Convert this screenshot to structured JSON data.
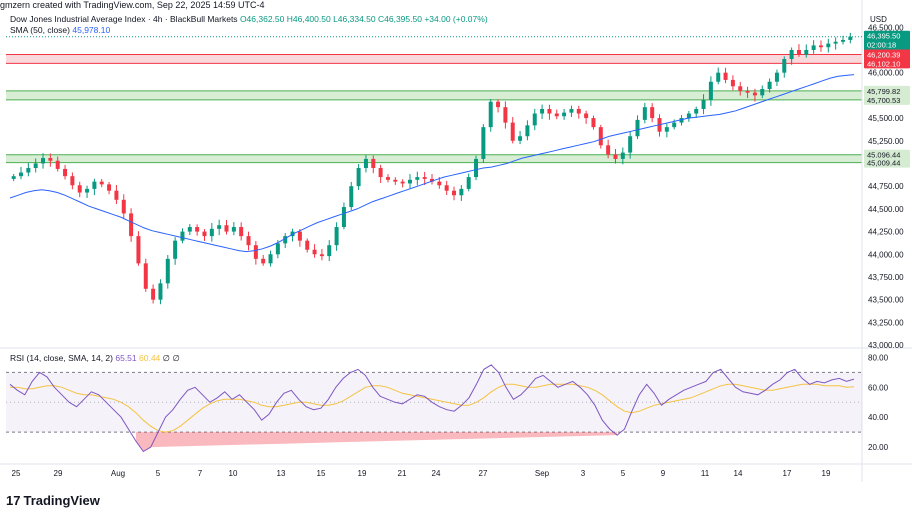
{
  "header": {
    "credit": "gmzern created with TradingView.com, Sep 22, 2025 14:59 UTC-4"
  },
  "legend": {
    "symbol": "Dow Jones Industrial Average Index · 4h · BlackBull Markets",
    "open": "O46,362.50",
    "high": "H46,400.50",
    "low": "L46,334.50",
    "close": "C46,395.50",
    "change": "+34.00 (+0.07%)",
    "sma_label": "SMA (50, close)",
    "sma_value": "45,978.10",
    "rsi_label": "RSI (14, close, SMA, 14, 2)",
    "rsi_value": "65.51",
    "rsi_ma_value": "60.44",
    "rsi_extra": "∅ ∅"
  },
  "branding": {
    "logo_text": "TradingView"
  },
  "colors": {
    "up": "#089981",
    "down": "#f23645",
    "sma": "#2962ff",
    "rsi": "#7e57c2",
    "rsi_ma": "#f5c342",
    "support_zone": "#cdeacb",
    "resistance_zone": "#f7cfd3"
  },
  "chart_data": [
    {
      "type": "candlestick",
      "currency_label": "USD",
      "y_ticks": [
        46500,
        46250,
        46000,
        45750,
        45500,
        45250,
        45000,
        44750,
        44500,
        44250,
        44000,
        43750,
        43500,
        43250,
        43000
      ],
      "y_tick_labels": [
        "46,500.00",
        "46,250.00",
        "46,000.00",
        "45,750.00",
        "45,500.00",
        "45,250.00",
        "45,000.00",
        "44,750.00",
        "44,500.00",
        "44,250.00",
        "44,000.00",
        "43,750.00",
        "43,500.00",
        "43,250.00",
        "43,000.00"
      ],
      "ylim": [
        42990,
        46690
      ],
      "x_tick_labels": [
        "25",
        "29",
        "Aug",
        "5",
        "7",
        "10",
        "13",
        "15",
        "19",
        "21",
        "24",
        "27",
        "Sep",
        "3",
        "5",
        "9",
        "11",
        "14",
        "17",
        "19"
      ],
      "price_labels": [
        {
          "value": "46,395.50",
          "sub": "02:00:18",
          "kind": "last"
        },
        {
          "value": "46,200.39",
          "kind": "resistance"
        },
        {
          "value": "46,102.10",
          "kind": "resistance"
        },
        {
          "value": "45,799.82",
          "kind": "support"
        },
        {
          "value": "45,700.53",
          "kind": "support"
        },
        {
          "value": "45,096.44",
          "kind": "support"
        },
        {
          "value": "45,009.44",
          "kind": "support"
        }
      ],
      "zones": [
        {
          "kind": "resistance",
          "from": 46102.1,
          "to": 46200.39
        },
        {
          "kind": "support",
          "from": 45700.53,
          "to": 45799.82
        },
        {
          "kind": "support",
          "from": 45009.44,
          "to": 45096.44
        }
      ],
      "close_path": [
        44860,
        44900,
        44950,
        45000,
        45060,
        45030,
        44940,
        44860,
        44760,
        44680,
        44720,
        44800,
        44770,
        44700,
        44600,
        44450,
        44200,
        43900,
        43620,
        43500,
        43680,
        43950,
        44150,
        44250,
        44300,
        44250,
        44200,
        44280,
        44320,
        44250,
        44300,
        44200,
        44100,
        43950,
        43900,
        44000,
        44120,
        44200,
        44250,
        44150,
        44050,
        44000,
        43980,
        44100,
        44300,
        44520,
        44750,
        44950,
        45050,
        44950,
        44850,
        44820,
        44800,
        44780,
        44820,
        44850,
        44830,
        44800,
        44760,
        44700,
        44650,
        44720,
        44850,
        45050,
        45400,
        45680,
        45620,
        45450,
        45250,
        45300,
        45420,
        45550,
        45600,
        45550,
        45520,
        45560,
        45600,
        45550,
        45500,
        45400,
        45200,
        45100,
        45050,
        45120,
        45300,
        45480,
        45620,
        45500,
        45350,
        45400,
        45450,
        45500,
        45550,
        45600,
        45700,
        45900,
        46000,
        45920,
        45850,
        45800,
        45780,
        45750,
        45820,
        45900,
        46000,
        46150,
        46250,
        46200,
        46250,
        46300,
        46280,
        46320,
        46340,
        46360,
        46395.5
      ],
      "sma_path": [
        44620,
        44650,
        44680,
        44700,
        44710,
        44700,
        44680,
        44650,
        44610,
        44570,
        44530,
        44500,
        44470,
        44440,
        44410,
        44370,
        44330,
        44290,
        44260,
        44240,
        44220,
        44200,
        44180,
        44160,
        44140,
        44120,
        44100,
        44080,
        44060,
        44040,
        44030,
        44040,
        44060,
        44090,
        44130,
        44180,
        44230,
        44270,
        44310,
        44350,
        44380,
        44410,
        44440,
        44470,
        44500,
        44540,
        44580,
        44610,
        44640,
        44670,
        44700,
        44730,
        44760,
        44790,
        44820,
        44850,
        44870,
        44890,
        44910,
        44930,
        44950,
        44960,
        44980,
        45000,
        45030,
        45060,
        45080,
        45100,
        45120,
        45140,
        45160,
        45180,
        45200,
        45220,
        45240,
        45270,
        45300,
        45320,
        45340,
        45360,
        45380,
        45400,
        45420,
        45440,
        45460,
        45480,
        45500,
        45510,
        45520,
        45530,
        45540,
        45560,
        45580,
        45610,
        45640,
        45670,
        45700,
        45730,
        45760,
        45790,
        45820,
        45850,
        45880,
        45910,
        45940,
        45960,
        45970,
        45978.1
      ]
    },
    {
      "type": "line",
      "name": "RSI",
      "ylim": [
        10,
        85
      ],
      "y_ticks": [
        80,
        60,
        40,
        20
      ],
      "y_tick_labels": [
        "80.00",
        "60.00",
        "40.00",
        "20.00"
      ],
      "bands": [
        30,
        50,
        70
      ],
      "rsi": [
        62,
        58,
        55,
        64,
        70,
        67,
        60,
        55,
        50,
        47,
        52,
        57,
        55,
        50,
        45,
        40,
        32,
        24,
        17,
        20,
        30,
        40,
        45,
        52,
        58,
        60,
        55,
        50,
        53,
        57,
        52,
        55,
        50,
        45,
        38,
        42,
        50,
        56,
        58,
        52,
        47,
        45,
        46,
        52,
        60,
        66,
        70,
        72,
        68,
        60,
        54,
        52,
        50,
        49,
        52,
        55,
        54,
        50,
        47,
        45,
        44,
        48,
        53,
        62,
        72,
        75,
        70,
        60,
        52,
        55,
        60,
        66,
        68,
        64,
        60,
        62,
        64,
        60,
        55,
        48,
        38,
        32,
        28,
        32,
        44,
        55,
        62,
        56,
        48,
        52,
        55,
        58,
        60,
        62,
        64,
        70,
        72,
        66,
        60,
        57,
        56,
        55,
        58,
        62,
        65,
        70,
        72,
        66,
        62,
        64,
        63,
        65,
        66,
        64,
        65.51
      ],
      "rsi_ma": [
        60,
        60,
        59,
        59,
        60,
        61,
        61,
        60,
        58,
        56,
        55,
        55,
        54,
        53,
        52,
        50,
        47,
        43,
        38,
        34,
        31,
        30,
        31,
        34,
        38,
        42,
        46,
        49,
        51,
        52,
        52,
        52,
        51,
        50,
        48,
        47,
        47,
        48,
        49,
        50,
        50,
        49,
        48,
        48,
        49,
        51,
        54,
        57,
        60,
        61,
        61,
        60,
        58,
        56,
        55,
        54,
        53,
        52,
        51,
        50,
        49,
        48,
        48,
        50,
        53,
        57,
        60,
        62,
        62,
        61,
        60,
        60,
        61,
        62,
        62,
        62,
        62,
        61,
        60,
        58,
        55,
        51,
        47,
        44,
        43,
        44,
        46,
        48,
        49,
        50,
        51,
        52,
        53,
        55,
        57,
        59,
        61,
        62,
        62,
        61,
        60,
        59,
        58,
        58,
        59,
        60,
        61,
        62,
        62,
        62,
        61,
        61,
        61,
        60,
        60.44
      ]
    }
  ]
}
